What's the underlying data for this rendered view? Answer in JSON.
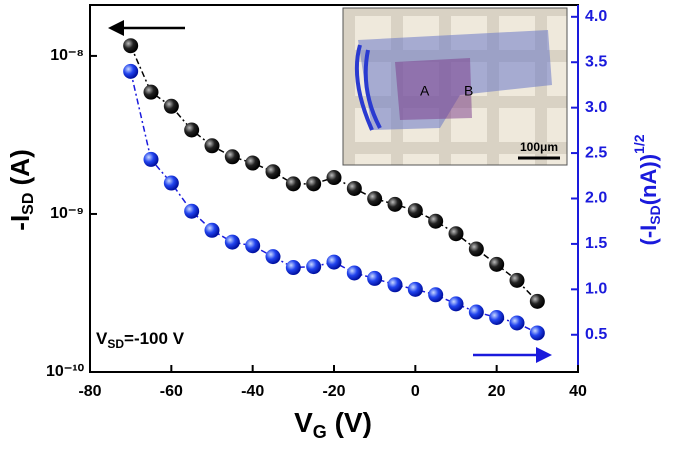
{
  "chart_data": {
    "type": "scatter",
    "x_label_parts": [
      "V",
      "G",
      " (V)"
    ],
    "y_label_parts": [
      "-I",
      "SD",
      " (A)"
    ],
    "y2_label_parts": [
      "(-I",
      "SD",
      "(nA))",
      "1/2"
    ],
    "annotation_parts": [
      "V",
      "SD",
      "=-100 V"
    ],
    "inset_labels": [
      "A",
      "B",
      "100μm"
    ],
    "x": [
      -70,
      -65,
      -60,
      -55,
      -50,
      -45,
      -40,
      -35,
      -30,
      -25,
      -20,
      -15,
      -10,
      -5,
      0,
      5,
      10,
      15,
      20,
      25,
      30
    ],
    "series": [
      {
        "color": "#000000",
        "axis": "y",
        "values": [
          1.16e-08,
          5.9e-09,
          4.8e-09,
          3.4e-09,
          2.7e-09,
          2.3e-09,
          2.1e-09,
          1.85e-09,
          1.55e-09,
          1.55e-09,
          1.7e-09,
          1.45e-09,
          1.25e-09,
          1.15e-09,
          1.05e-09,
          9e-10,
          7.5e-10,
          6e-10,
          4.8e-10,
          3.8e-10,
          2.8e-10
        ]
      },
      {
        "color": "#1a1adc",
        "axis": "y2",
        "values": [
          3.4,
          2.43,
          2.17,
          1.86,
          1.65,
          1.52,
          1.48,
          1.36,
          1.24,
          1.25,
          1.3,
          1.18,
          1.12,
          1.05,
          1.0,
          0.94,
          0.84,
          0.75,
          0.69,
          0.63,
          0.52
        ]
      }
    ],
    "xlim": [
      -80,
      40
    ],
    "xticks": [
      -80,
      -60,
      -40,
      -20,
      0,
      20,
      40
    ],
    "yscale": "log",
    "ylim": [
      1e-10,
      2.1e-08
    ],
    "yticks": [
      {
        "value": 1e-10,
        "label": "10⁻¹⁰"
      },
      {
        "value": 1e-09,
        "label": "10⁻⁹"
      },
      {
        "value": 1e-08,
        "label": "10⁻⁸"
      }
    ],
    "y2lim": [
      0.09,
      4.13
    ],
    "y2ticks": [
      {
        "value": 0.5,
        "label": "0.5"
      },
      {
        "value": 1.0,
        "label": "1.0"
      },
      {
        "value": 1.5,
        "label": "1.5"
      },
      {
        "value": 2.0,
        "label": "2.0"
      },
      {
        "value": 2.5,
        "label": "2.5"
      },
      {
        "value": 3.0,
        "label": "3.0"
      },
      {
        "value": 3.5,
        "label": "3.5"
      },
      {
        "value": 4.0,
        "label": "4.0"
      }
    ],
    "y2_color": "#1a1adc"
  }
}
